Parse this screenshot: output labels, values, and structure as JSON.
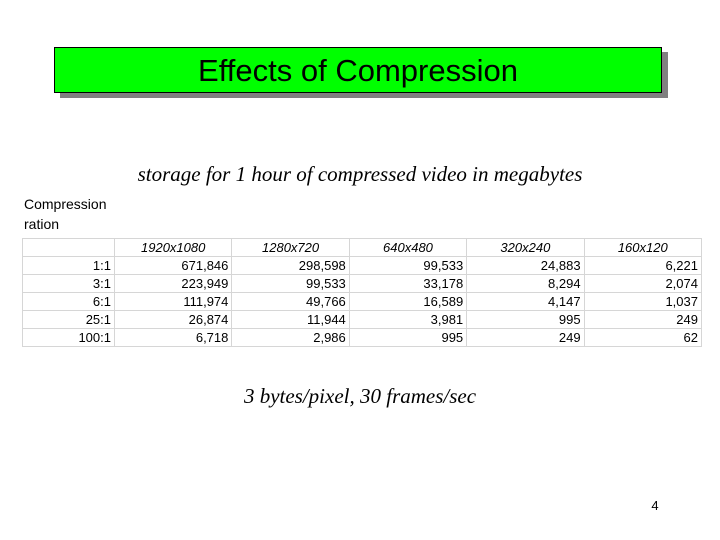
{
  "slide": {
    "title": "Effects of Compression",
    "subtitle": "storage for 1 hour of compressed video in megabytes",
    "axis_note_line1": "Compression",
    "axis_note_line2": "ration",
    "footnote": "3 bytes/pixel, 30 frames/sec",
    "page_number": "4",
    "title_bg_color": "#00ff00"
  },
  "table": {
    "columns": [
      "",
      "1920x1080",
      "1280x720",
      "640x480",
      "320x240",
      "160x120"
    ],
    "rows": [
      [
        "1:1",
        "671,846",
        "298,598",
        "99,533",
        "24,883",
        "6,221"
      ],
      [
        "3:1",
        "223,949",
        "99,533",
        "33,178",
        "8,294",
        "2,074"
      ],
      [
        "6:1",
        "111,974",
        "49,766",
        "16,589",
        "4,147",
        "1,037"
      ],
      [
        "25:1",
        "26,874",
        "11,944",
        "3,981",
        "995",
        "249"
      ],
      [
        "100:1",
        "6,718",
        "2,986",
        "995",
        "249",
        "62"
      ]
    ]
  }
}
